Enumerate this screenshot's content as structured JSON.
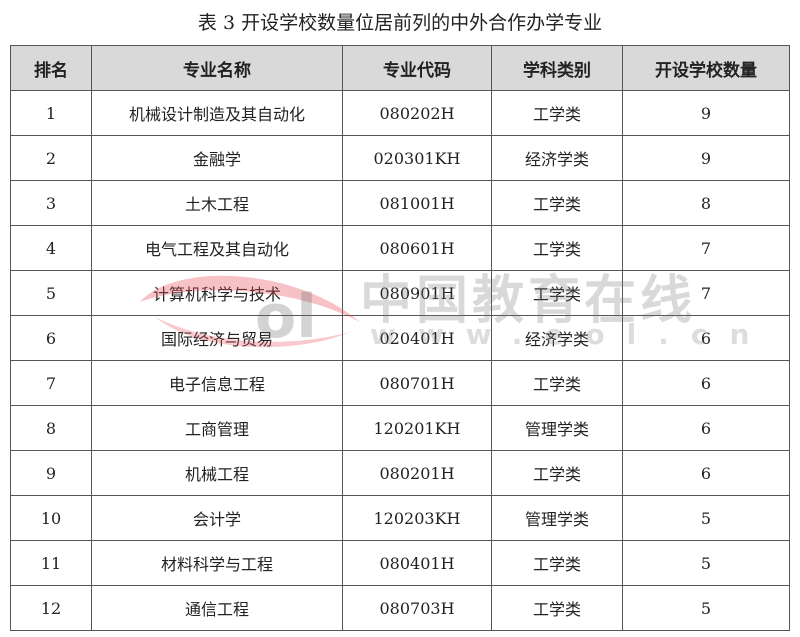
{
  "title": "表 3 开设学校数量位居前列的中外合作办学专业",
  "table": {
    "headers": [
      "排名",
      "专业名称",
      "专业代码",
      "学科类别",
      "开设学校数量"
    ],
    "rows": [
      [
        "1",
        "机械设计制造及其自动化",
        "080202H",
        "工学类",
        "9"
      ],
      [
        "2",
        "金融学",
        "020301KH",
        "经济学类",
        "9"
      ],
      [
        "3",
        "土木工程",
        "081001H",
        "工学类",
        "8"
      ],
      [
        "4",
        "电气工程及其自动化",
        "080601H",
        "工学类",
        "7"
      ],
      [
        "5",
        "计算机科学与技术",
        "080901H",
        "工学类",
        "7"
      ],
      [
        "6",
        "国际经济与贸易",
        "020401H",
        "经济学类",
        "6"
      ],
      [
        "7",
        "电子信息工程",
        "080701H",
        "工学类",
        "6"
      ],
      [
        "8",
        "工商管理",
        "120201KH",
        "管理学类",
        "6"
      ],
      [
        "9",
        "机械工程",
        "080201H",
        "工学类",
        "6"
      ],
      [
        "10",
        "会计学",
        "120203KH",
        "管理学类",
        "5"
      ],
      [
        "11",
        "材料科学与工程",
        "080401H",
        "工学类",
        "5"
      ],
      [
        "12",
        "通信工程",
        "080703H",
        "工学类",
        "5"
      ]
    ]
  },
  "watermark": {
    "logo": "eol",
    "name": "中国教育在线",
    "url": "www.eol.cn"
  },
  "colors": {
    "header_bg": "#d9d9d9",
    "border": "#555555",
    "watermark_red": "#e8505b"
  }
}
